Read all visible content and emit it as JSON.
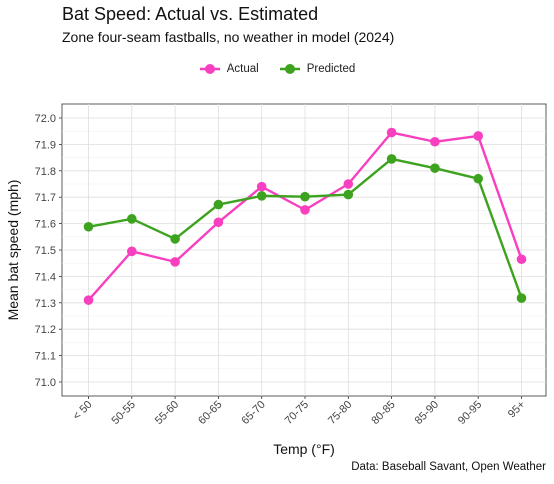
{
  "chart_data": {
    "type": "line",
    "title": "Bat Speed: Actual vs. Estimated",
    "subtitle": "Zone four-seam fastballs, no weather in model (2024)",
    "xlabel": "Temp (°F)",
    "ylabel": "Mean bat speed (mph)",
    "caption": "Data: Baseball Savant, Open Weather",
    "categories": [
      "< 50",
      "50-55",
      "55-60",
      "60-65",
      "65-70",
      "70-75",
      "75-80",
      "80-85",
      "85-90",
      "90-95",
      "95+"
    ],
    "ylim": [
      71.0,
      72.0
    ],
    "yticks": [
      "71.0",
      "71.1",
      "71.2",
      "71.3",
      "71.4",
      "71.5",
      "71.6",
      "71.7",
      "71.8",
      "71.9",
      "72.0"
    ],
    "grid": true,
    "legend_position": "top",
    "series": [
      {
        "name": "Actual",
        "color": "#f73fbf",
        "values": [
          71.31,
          71.495,
          71.455,
          71.605,
          71.74,
          71.652,
          71.75,
          71.945,
          71.91,
          71.932,
          71.465
        ]
      },
      {
        "name": "Predicted",
        "color": "#3da31f",
        "values": [
          71.588,
          71.618,
          71.542,
          71.672,
          71.705,
          71.702,
          71.71,
          71.845,
          71.81,
          71.77,
          71.318
        ]
      }
    ]
  }
}
